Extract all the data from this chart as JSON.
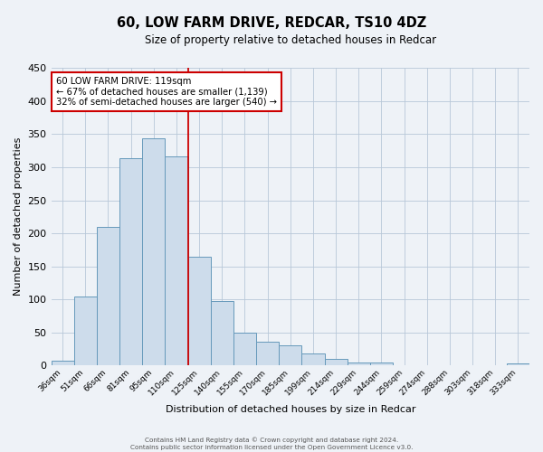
{
  "title": "60, LOW FARM DRIVE, REDCAR, TS10 4DZ",
  "subtitle": "Size of property relative to detached houses in Redcar",
  "xlabel": "Distribution of detached houses by size in Redcar",
  "ylabel": "Number of detached properties",
  "bar_labels": [
    "36sqm",
    "51sqm",
    "66sqm",
    "81sqm",
    "95sqm",
    "110sqm",
    "125sqm",
    "140sqm",
    "155sqm",
    "170sqm",
    "185sqm",
    "199sqm",
    "214sqm",
    "229sqm",
    "244sqm",
    "259sqm",
    "274sqm",
    "288sqm",
    "303sqm",
    "318sqm",
    "333sqm"
  ],
  "bar_values": [
    7,
    105,
    210,
    313,
    344,
    317,
    165,
    97,
    50,
    36,
    30,
    18,
    10,
    5,
    5,
    0,
    0,
    0,
    0,
    0,
    3
  ],
  "bar_color": "#cddceb",
  "bar_edge_color": "#6699bb",
  "ylim": [
    0,
    450
  ],
  "yticks": [
    0,
    50,
    100,
    150,
    200,
    250,
    300,
    350,
    400,
    450
  ],
  "vline_color": "#cc0000",
  "annotation_title": "60 LOW FARM DRIVE: 119sqm",
  "annotation_line1": "← 67% of detached houses are smaller (1,139)",
  "annotation_line2": "32% of semi-detached houses are larger (540) →",
  "annotation_box_color": "#ffffff",
  "annotation_box_edge_color": "#cc0000",
  "footer_line1": "Contains HM Land Registry data © Crown copyright and database right 2024.",
  "footer_line2": "Contains public sector information licensed under the Open Government Licence v3.0.",
  "background_color": "#eef2f7",
  "grid_color": "#b8c8d8"
}
